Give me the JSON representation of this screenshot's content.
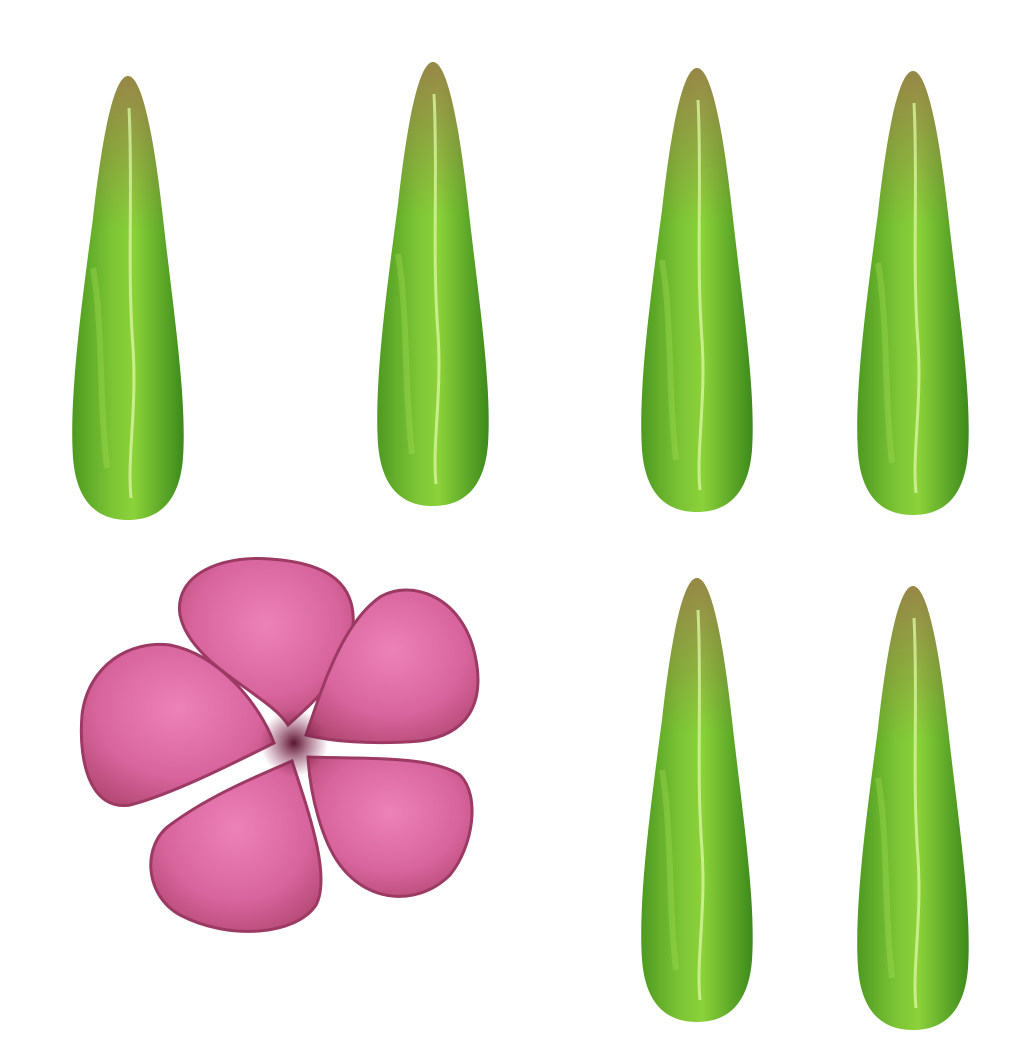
{
  "sprite_sheet": {
    "background": "#ffffff",
    "leaf_count": 6,
    "flower_count": 1,
    "colors": {
      "leaf_light": "#8bd23a",
      "leaf_mid": "#5fb22a",
      "leaf_dark": "#3d8a1c",
      "leaf_tip": "#9a7a4a",
      "leaf_vein": "#d8f5a0",
      "flower_light": "#e97ab2",
      "flower_mid": "#d05e96",
      "flower_dark": "#a8406e",
      "flower_center": "#6e1f3e"
    },
    "sprites": [
      {
        "kind": "leaf",
        "icon": "leaf-icon"
      },
      {
        "kind": "leaf",
        "icon": "leaf-icon"
      },
      {
        "kind": "leaf",
        "icon": "leaf-icon"
      },
      {
        "kind": "leaf",
        "icon": "leaf-icon"
      },
      {
        "kind": "flower",
        "icon": "flower-icon",
        "petals": 5
      },
      {
        "kind": "leaf",
        "icon": "leaf-icon"
      },
      {
        "kind": "leaf",
        "icon": "leaf-icon"
      }
    ]
  }
}
